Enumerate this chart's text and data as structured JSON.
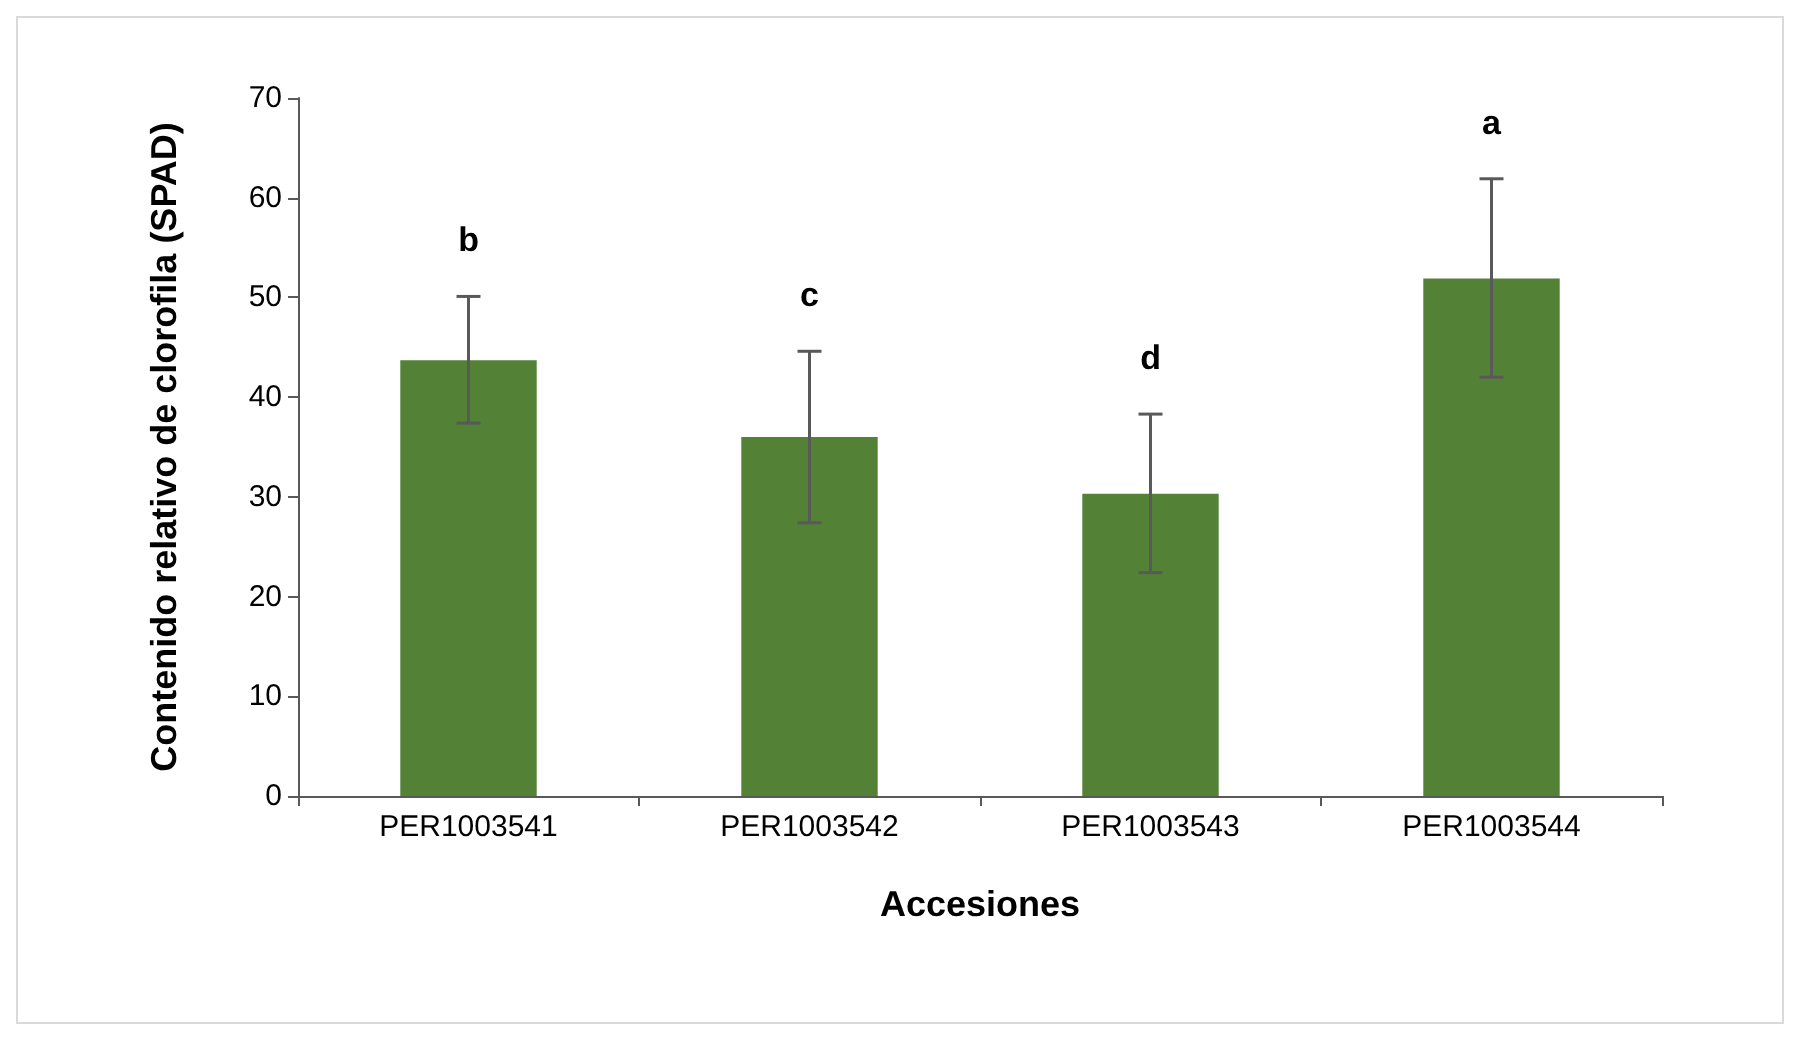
{
  "chart_data": {
    "type": "bar",
    "xlabel": "Accesiones",
    "ylabel": "Contenido relativo de clorofila (SPAD)",
    "categories": [
      "PER1003541",
      "PER1003542",
      "PER1003543",
      "PER1003544"
    ],
    "values": [
      43.7,
      36,
      30.3,
      51.9
    ],
    "color": "#538135",
    "errors": [
      [
        37.4,
        50.1
      ],
      [
        27.4,
        44.6
      ],
      [
        22.4,
        38.3
      ],
      [
        42,
        61.9
      ]
    ],
    "ylim": [
      0,
      70
    ],
    "yticks": [
      0,
      10,
      20,
      30,
      40,
      50,
      60,
      70
    ],
    "grid": false,
    "annotations": [
      "b",
      "c",
      "d",
      "a"
    ]
  }
}
